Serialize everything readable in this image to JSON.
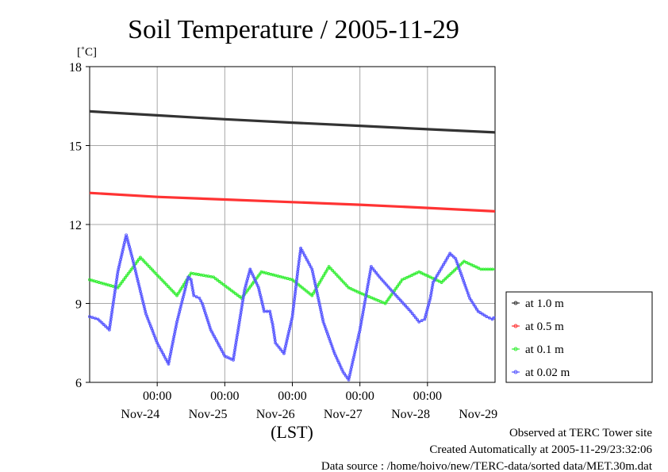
{
  "title": "Soil Temperature / 2005-11-29",
  "y_unit": "[˚C]",
  "xlabel": "(LST)",
  "footer": {
    "line1": "Observed at TERC Tower site",
    "line2": "Created Automatically at 2005-11-29/23:32:06",
    "line3": "Data source : /home/hoivo/new/TERC-data/sorted  data/MET.30m.dat"
  },
  "chart_data": {
    "type": "line",
    "title": "Soil Temperature / 2005-11-29",
    "xlabel": "(LST)",
    "ylabel": "[˚C]",
    "ylim": [
      6,
      18
    ],
    "yticks": [
      6,
      9,
      12,
      15,
      18
    ],
    "x_unit": "hours since 2005-11-23 00:00 LST",
    "xlim": [
      12,
      156
    ],
    "x_ticks": [
      {
        "x": 36,
        "time": "00:00",
        "date": "Nov-24"
      },
      {
        "x": 60,
        "time": "00:00",
        "date": "Nov-25"
      },
      {
        "x": 84,
        "time": "00:00",
        "date": "Nov-26"
      },
      {
        "x": 108,
        "time": "00:00",
        "date": "Nov-27"
      },
      {
        "x": 132,
        "time": "00:00",
        "date": "Nov-28"
      },
      {
        "x": null,
        "time": "",
        "date": "Nov-29"
      }
    ],
    "grid": true,
    "legend_position": "right",
    "series": [
      {
        "name": "at 1.0 m",
        "color": "#333333",
        "x": [
          12,
          36,
          60,
          84,
          108,
          132,
          156
        ],
        "y": [
          16.3,
          16.15,
          16.0,
          15.87,
          15.75,
          15.62,
          15.5
        ]
      },
      {
        "name": "at 0.5 m",
        "color": "#ff3333",
        "x": [
          12,
          36,
          60,
          84,
          108,
          132,
          156
        ],
        "y": [
          13.2,
          13.05,
          12.95,
          12.85,
          12.75,
          12.63,
          12.5
        ]
      },
      {
        "name": "at 0.1 m",
        "color": "#33ee33",
        "x": [
          12,
          22,
          30,
          43,
          48,
          56,
          66,
          73,
          84,
          91,
          97,
          104,
          108,
          117,
          123,
          129,
          137,
          145,
          151,
          156
        ],
        "y": [
          9.9,
          9.6,
          10.75,
          9.3,
          10.15,
          10.0,
          9.2,
          10.2,
          9.9,
          9.3,
          10.4,
          9.6,
          9.4,
          9.0,
          9.9,
          10.2,
          9.8,
          10.6,
          10.3,
          10.3
        ]
      },
      {
        "name": "at 0.02 m",
        "color": "#5555ff",
        "x": [
          12,
          15,
          19,
          22,
          25,
          27,
          32,
          36,
          40,
          43,
          47,
          48,
          49,
          51,
          52,
          55,
          60,
          63,
          67,
          69,
          72,
          74,
          76,
          77,
          78,
          81,
          84,
          86,
          87,
          91,
          93,
          95,
          99,
          102,
          104,
          108,
          112,
          115,
          120,
          126,
          129,
          131,
          133,
          134,
          140,
          142,
          146,
          147,
          150,
          153,
          155,
          156
        ],
        "y": [
          8.5,
          8.4,
          8.0,
          10.2,
          11.6,
          10.8,
          8.6,
          7.5,
          6.7,
          8.3,
          10.0,
          9.9,
          9.3,
          9.2,
          9.0,
          8.0,
          7.0,
          6.85,
          9.5,
          10.3,
          9.6,
          8.7,
          8.7,
          8.2,
          7.5,
          7.1,
          8.5,
          10.3,
          11.1,
          10.3,
          9.3,
          8.3,
          7.1,
          6.4,
          6.1,
          8.0,
          10.4,
          10.0,
          9.4,
          8.7,
          8.3,
          8.4,
          9.2,
          9.8,
          10.9,
          10.7,
          9.5,
          9.2,
          8.7,
          8.5,
          8.4,
          8.5
        ]
      }
    ]
  }
}
